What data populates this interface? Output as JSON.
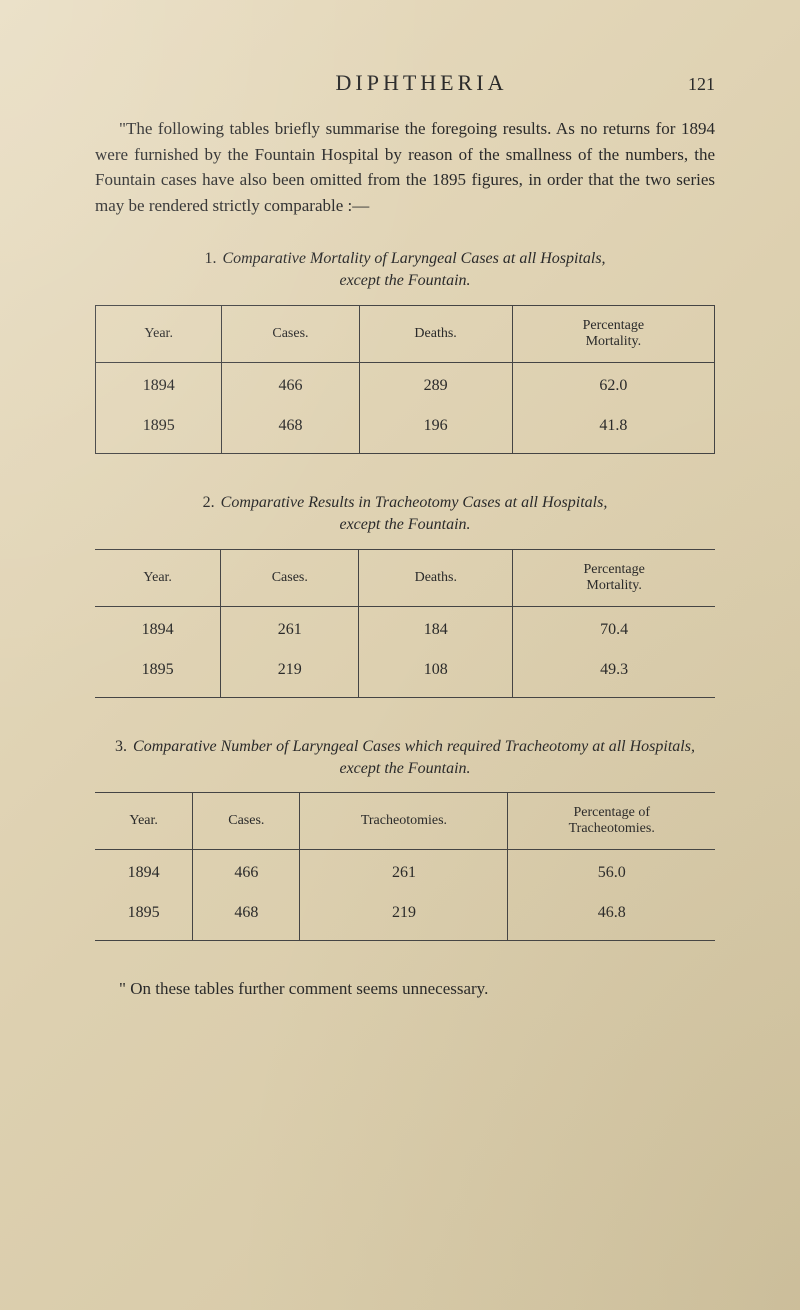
{
  "header": {
    "title": "DIPHTHERIA",
    "page_number": "121"
  },
  "intro": "\"The following tables briefly summarise the foregoing results. As no returns for 1894 were furnished by the Fountain Hospital by reason of the smallness of the numbers, the Fountain cases have also been omitted from the 1895 figures, in order that the two series may be rendered strictly comparable :—",
  "tables": [
    {
      "number": "1.",
      "caption_before": "Comparative Mortality of Laryngeal Cases at all Hospitals",
      "caption_after": "except the Fountain.",
      "columns": [
        "Year.",
        "Cases.",
        "Deaths.",
        "Percentage Mortality."
      ],
      "rows": [
        [
          "1894",
          "466",
          "289",
          "62.0"
        ],
        [
          "1895",
          "468",
          "196",
          "41.8"
        ]
      ],
      "style": "boxed"
    },
    {
      "number": "2.",
      "caption_before": "Comparative Results in Tracheotomy Cases at all Hospitals",
      "caption_after": "except the Fountain.",
      "columns": [
        "Year.",
        "Cases.",
        "Deaths.",
        "Percentage Mortality."
      ],
      "rows": [
        [
          "1894",
          "261",
          "184",
          "70.4"
        ],
        [
          "1895",
          "219",
          "108",
          "49.3"
        ]
      ],
      "style": "open"
    },
    {
      "number": "3.",
      "caption_before": "Comparative Number of Laryngeal Cases which required Tracheotomy at all Hospitals",
      "caption_after": "except the Fountain.",
      "columns": [
        "Year.",
        "Cases.",
        "Tracheotomies.",
        "Percentage of Tracheotomies."
      ],
      "rows": [
        [
          "1894",
          "466",
          "261",
          "56.0"
        ],
        [
          "1895",
          "468",
          "219",
          "46.8"
        ]
      ],
      "style": "open"
    }
  ],
  "footer": "\" On these tables further comment seems unnecessary."
}
